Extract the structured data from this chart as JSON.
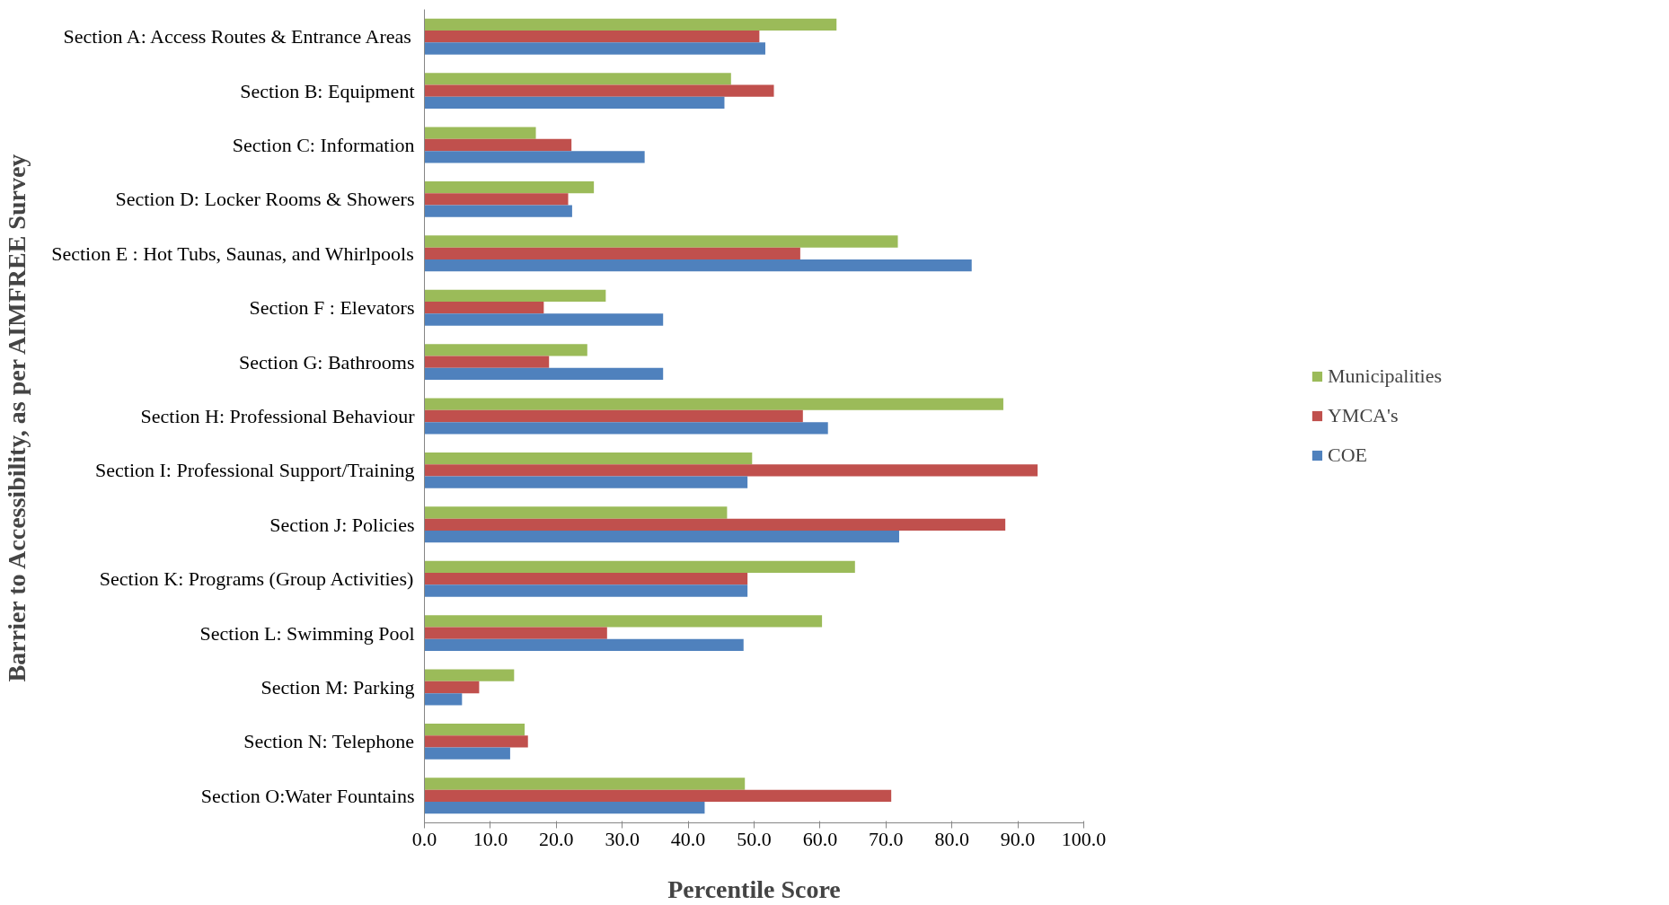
{
  "chart_data": {
    "type": "bar",
    "orientation": "horizontal",
    "xlabel": "Percentile Score",
    "ylabel": "Barrier to Accessibility, as per AIMFREE Survey",
    "categories": [
      "Section A: Access Routes & Entrance Areas",
      "Section B: Equipment",
      "Section C: Information",
      "Section D: Locker Rooms & Showers",
      "Section E : Hot Tubs, Saunas, and Whirlpools",
      "Section F : Elevators",
      "Section G: Bathrooms",
      "Section H: Professional Behaviour",
      "Section I: Professional Support/Training",
      "Section J: Policies",
      "Section K: Programs (Group Activities)",
      "Section L: Swimming Pool",
      "Section M: Parking",
      "Section N: Telephone",
      "Section O:Water Fountains"
    ],
    "series": [
      {
        "name": "Municipalities",
        "color": "#9bbb59",
        "values": [
          62.5,
          46.5,
          16.9,
          25.7,
          71.8,
          27.5,
          24.7,
          87.8,
          49.7,
          45.9,
          65.3,
          60.3,
          13.6,
          15.2,
          48.6
        ]
      },
      {
        "name": "YMCA's",
        "color": "#c0504d",
        "values": [
          50.8,
          53.0,
          22.3,
          21.8,
          57.0,
          18.1,
          18.9,
          57.4,
          93.0,
          88.1,
          49.0,
          27.7,
          8.3,
          15.7,
          70.8
        ]
      },
      {
        "name": "COE",
        "color": "#4f81bd",
        "values": [
          51.7,
          45.5,
          33.4,
          22.4,
          83.0,
          36.2,
          36.2,
          61.2,
          49.0,
          72.0,
          49.0,
          48.4,
          5.7,
          13.0,
          42.5
        ]
      }
    ],
    "xlim": [
      0,
      100
    ],
    "xticks": [
      {
        "value": 0,
        "label": "0.0"
      },
      {
        "value": 10,
        "label": "10.0"
      },
      {
        "value": 20,
        "label": "20.0"
      },
      {
        "value": 30,
        "label": "30.0"
      },
      {
        "value": 40,
        "label": "40.0"
      },
      {
        "value": 50,
        "label": "50.0"
      },
      {
        "value": 60,
        "label": "60.0"
      },
      {
        "value": 70,
        "label": "70.0"
      },
      {
        "value": 80,
        "label": "80.0"
      },
      {
        "value": 90,
        "label": "90.0"
      },
      {
        "value": 100,
        "label": "100.0"
      }
    ],
    "grid": false,
    "legend": "right"
  }
}
